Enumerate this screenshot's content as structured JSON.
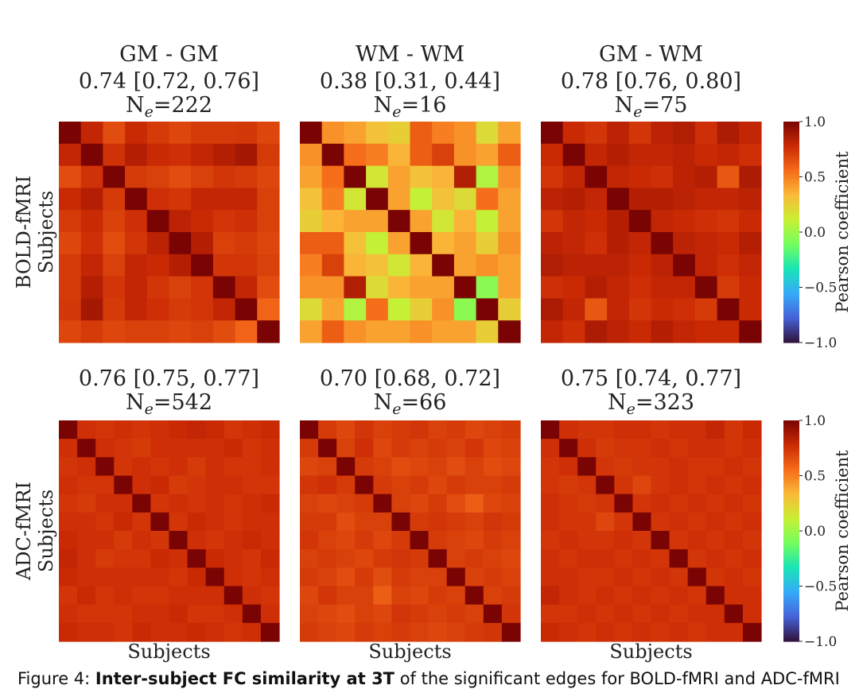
{
  "chart_data": [
    {
      "type": "heatmap",
      "row": "BOLD-fMRI",
      "title_lines": [
        "GM - GM",
        "0.74 [0.72, 0.76]",
        "N_e=222"
      ],
      "ylabel": "BOLD-fMRI\nSubjects",
      "xlabel": "",
      "n_subjects": 10,
      "mean_offdiag": 0.74,
      "matrix": [
        [
          1.0,
          0.8,
          0.66,
          0.78,
          0.72,
          0.68,
          0.72,
          0.72,
          0.73,
          0.68
        ],
        [
          0.8,
          1.0,
          0.75,
          0.84,
          0.78,
          0.76,
          0.8,
          0.84,
          0.88,
          0.72
        ],
        [
          0.66,
          0.75,
          1.0,
          0.72,
          0.7,
          0.66,
          0.7,
          0.74,
          0.72,
          0.68
        ],
        [
          0.78,
          0.84,
          0.72,
          1.0,
          0.76,
          0.74,
          0.8,
          0.8,
          0.8,
          0.7
        ],
        [
          0.72,
          0.78,
          0.7,
          0.76,
          1.0,
          0.82,
          0.78,
          0.74,
          0.76,
          0.7
        ],
        [
          0.68,
          0.76,
          0.66,
          0.74,
          0.82,
          1.0,
          0.84,
          0.7,
          0.72,
          0.68
        ],
        [
          0.72,
          0.8,
          0.7,
          0.8,
          0.78,
          0.84,
          1.0,
          0.74,
          0.74,
          0.7
        ],
        [
          0.72,
          0.84,
          0.74,
          0.8,
          0.74,
          0.7,
          0.74,
          1.0,
          0.8,
          0.66
        ],
        [
          0.73,
          0.88,
          0.72,
          0.8,
          0.76,
          0.72,
          0.74,
          0.8,
          1.0,
          0.58
        ],
        [
          0.68,
          0.72,
          0.68,
          0.7,
          0.7,
          0.68,
          0.7,
          0.66,
          0.58,
          1.0
        ]
      ]
    },
    {
      "type": "heatmap",
      "row": "BOLD-fMRI",
      "title_lines": [
        "WM - WM",
        "0.38 [0.31, 0.44]",
        "N_e=16"
      ],
      "ylabel": "",
      "xlabel": "",
      "n_subjects": 10,
      "mean_offdiag": 0.38,
      "matrix": [
        [
          1.0,
          0.45,
          0.4,
          0.3,
          0.25,
          0.6,
          0.5,
          0.45,
          0.2,
          0.4
        ],
        [
          0.45,
          1.0,
          0.55,
          0.5,
          0.35,
          0.6,
          0.7,
          0.45,
          0.4,
          0.6
        ],
        [
          0.4,
          0.55,
          1.0,
          0.15,
          0.4,
          0.3,
          0.35,
          0.85,
          0.05,
          0.45
        ],
        [
          0.3,
          0.5,
          0.15,
          1.0,
          0.4,
          0.1,
          0.3,
          0.2,
          0.55,
          0.4
        ],
        [
          0.25,
          0.35,
          0.4,
          0.4,
          1.0,
          0.4,
          0.15,
          0.35,
          0.1,
          0.4
        ],
        [
          0.6,
          0.6,
          0.3,
          0.1,
          0.4,
          1.0,
          0.35,
          0.4,
          0.25,
          0.45
        ],
        [
          0.5,
          0.7,
          0.35,
          0.3,
          0.15,
          0.35,
          1.0,
          0.4,
          0.45,
          0.4
        ],
        [
          0.45,
          0.45,
          0.85,
          0.2,
          0.35,
          0.4,
          0.4,
          1.0,
          -0.05,
          0.4
        ],
        [
          0.2,
          0.4,
          0.05,
          0.55,
          0.1,
          0.25,
          0.45,
          -0.05,
          1.0,
          0.25
        ],
        [
          0.4,
          0.6,
          0.45,
          0.4,
          0.4,
          0.45,
          0.4,
          0.4,
          0.25,
          1.0
        ]
      ]
    },
    {
      "type": "heatmap",
      "row": "BOLD-fMRI",
      "title_lines": [
        "GM - WM",
        "0.78 [0.76, 0.80]",
        "N_e=75"
      ],
      "ylabel": "",
      "xlabel": "",
      "n_subjects": 10,
      "mean_offdiag": 0.78,
      "matrix": [
        [
          1.0,
          0.78,
          0.74,
          0.82,
          0.74,
          0.82,
          0.85,
          0.76,
          0.86,
          0.8
        ],
        [
          0.78,
          1.0,
          0.8,
          0.84,
          0.8,
          0.8,
          0.82,
          0.78,
          0.8,
          0.76
        ],
        [
          0.74,
          0.8,
          1.0,
          0.8,
          0.78,
          0.76,
          0.82,
          0.84,
          0.62,
          0.86
        ],
        [
          0.82,
          0.84,
          0.8,
          1.0,
          0.84,
          0.84,
          0.82,
          0.8,
          0.8,
          0.82
        ],
        [
          0.74,
          0.8,
          0.78,
          0.84,
          1.0,
          0.8,
          0.78,
          0.76,
          0.74,
          0.78
        ],
        [
          0.82,
          0.8,
          0.76,
          0.84,
          0.8,
          1.0,
          0.82,
          0.8,
          0.78,
          0.84
        ],
        [
          0.85,
          0.82,
          0.82,
          0.82,
          0.78,
          0.82,
          1.0,
          0.8,
          0.76,
          0.8
        ],
        [
          0.76,
          0.78,
          0.84,
          0.8,
          0.76,
          0.8,
          0.8,
          1.0,
          0.72,
          0.78
        ],
        [
          0.86,
          0.8,
          0.62,
          0.8,
          0.74,
          0.78,
          0.76,
          0.72,
          1.0,
          0.78
        ],
        [
          0.8,
          0.76,
          0.86,
          0.82,
          0.78,
          0.84,
          0.8,
          0.78,
          0.78,
          1.0
        ]
      ]
    },
    {
      "type": "heatmap",
      "row": "ADC-fMRI",
      "title_lines": [
        "0.76 [0.75, 0.77]",
        "N_e=542"
      ],
      "ylabel": "ADC-fMRI\nSubjects",
      "xlabel": "Subjects",
      "n_subjects": 12,
      "mean_offdiag": 0.76,
      "matrix": [
        [
          1.0,
          0.76,
          0.74,
          0.76,
          0.74,
          0.76,
          0.78,
          0.8,
          0.78,
          0.74,
          0.76,
          0.78
        ],
        [
          0.76,
          1.0,
          0.76,
          0.74,
          0.72,
          0.76,
          0.76,
          0.76,
          0.76,
          0.78,
          0.74,
          0.76
        ],
        [
          0.74,
          0.76,
          1.0,
          0.74,
          0.76,
          0.74,
          0.76,
          0.72,
          0.76,
          0.74,
          0.74,
          0.76
        ],
        [
          0.76,
          0.74,
          0.74,
          1.0,
          0.76,
          0.78,
          0.72,
          0.74,
          0.76,
          0.76,
          0.74,
          0.74
        ],
        [
          0.74,
          0.72,
          0.76,
          0.76,
          1.0,
          0.74,
          0.76,
          0.74,
          0.76,
          0.74,
          0.76,
          0.78
        ],
        [
          0.76,
          0.76,
          0.74,
          0.78,
          0.74,
          1.0,
          0.74,
          0.78,
          0.76,
          0.74,
          0.76,
          0.76
        ],
        [
          0.78,
          0.76,
          0.76,
          0.72,
          0.76,
          0.74,
          1.0,
          0.76,
          0.74,
          0.76,
          0.78,
          0.76
        ],
        [
          0.8,
          0.76,
          0.72,
          0.74,
          0.74,
          0.78,
          0.76,
          1.0,
          0.78,
          0.76,
          0.74,
          0.78
        ],
        [
          0.78,
          0.76,
          0.76,
          0.76,
          0.76,
          0.76,
          0.74,
          0.78,
          1.0,
          0.76,
          0.74,
          0.76
        ],
        [
          0.74,
          0.78,
          0.74,
          0.76,
          0.74,
          0.74,
          0.76,
          0.76,
          0.76,
          1.0,
          0.76,
          0.74
        ],
        [
          0.76,
          0.74,
          0.74,
          0.74,
          0.76,
          0.76,
          0.78,
          0.74,
          0.74,
          0.76,
          1.0,
          0.76
        ],
        [
          0.78,
          0.76,
          0.76,
          0.74,
          0.78,
          0.76,
          0.76,
          0.78,
          0.76,
          0.74,
          0.76,
          1.0
        ]
      ]
    },
    {
      "type": "heatmap",
      "row": "ADC-fMRI",
      "title_lines": [
        "0.70 [0.68, 0.72]",
        "N_e=66"
      ],
      "ylabel": "",
      "xlabel": "Subjects",
      "n_subjects": 12,
      "mean_offdiag": 0.7,
      "matrix": [
        [
          1.0,
          0.72,
          0.68,
          0.74,
          0.7,
          0.72,
          0.74,
          0.7,
          0.72,
          0.68,
          0.7,
          0.72
        ],
        [
          0.72,
          1.0,
          0.7,
          0.76,
          0.68,
          0.72,
          0.7,
          0.72,
          0.7,
          0.74,
          0.68,
          0.7
        ],
        [
          0.68,
          0.7,
          1.0,
          0.72,
          0.7,
          0.66,
          0.68,
          0.7,
          0.66,
          0.7,
          0.66,
          0.68
        ],
        [
          0.74,
          0.76,
          0.72,
          1.0,
          0.72,
          0.7,
          0.72,
          0.68,
          0.72,
          0.7,
          0.7,
          0.72
        ],
        [
          0.7,
          0.68,
          0.7,
          0.72,
          1.0,
          0.7,
          0.68,
          0.72,
          0.66,
          0.6,
          0.68,
          0.7
        ],
        [
          0.72,
          0.72,
          0.66,
          0.7,
          0.7,
          1.0,
          0.72,
          0.74,
          0.72,
          0.7,
          0.74,
          0.72
        ],
        [
          0.74,
          0.7,
          0.68,
          0.72,
          0.68,
          0.72,
          1.0,
          0.72,
          0.7,
          0.68,
          0.72,
          0.7
        ],
        [
          0.7,
          0.72,
          0.7,
          0.68,
          0.72,
          0.74,
          0.72,
          1.0,
          0.7,
          0.72,
          0.7,
          0.68
        ],
        [
          0.72,
          0.7,
          0.66,
          0.72,
          0.66,
          0.72,
          0.7,
          0.7,
          1.0,
          0.7,
          0.72,
          0.7
        ],
        [
          0.68,
          0.74,
          0.7,
          0.7,
          0.6,
          0.7,
          0.68,
          0.72,
          0.7,
          1.0,
          0.7,
          0.72
        ],
        [
          0.7,
          0.68,
          0.66,
          0.7,
          0.68,
          0.74,
          0.72,
          0.7,
          0.72,
          0.7,
          1.0,
          0.74
        ],
        [
          0.72,
          0.7,
          0.68,
          0.72,
          0.7,
          0.72,
          0.7,
          0.68,
          0.7,
          0.72,
          0.74,
          1.0
        ]
      ]
    },
    {
      "type": "heatmap",
      "row": "ADC-fMRI",
      "title_lines": [
        "0.75 [0.74, 0.77]",
        "N_e=323"
      ],
      "ylabel": "",
      "xlabel": "Subjects",
      "n_subjects": 12,
      "mean_offdiag": 0.75,
      "matrix": [
        [
          1.0,
          0.76,
          0.74,
          0.74,
          0.76,
          0.76,
          0.74,
          0.76,
          0.76,
          0.8,
          0.74,
          0.78
        ],
        [
          0.76,
          1.0,
          0.76,
          0.72,
          0.74,
          0.74,
          0.76,
          0.74,
          0.76,
          0.76,
          0.74,
          0.76
        ],
        [
          0.74,
          0.76,
          1.0,
          0.74,
          0.72,
          0.74,
          0.74,
          0.76,
          0.74,
          0.74,
          0.76,
          0.74
        ],
        [
          0.74,
          0.72,
          0.74,
          1.0,
          0.74,
          0.68,
          0.74,
          0.76,
          0.74,
          0.76,
          0.74,
          0.76
        ],
        [
          0.76,
          0.74,
          0.72,
          0.74,
          1.0,
          0.74,
          0.76,
          0.74,
          0.76,
          0.74,
          0.76,
          0.74
        ],
        [
          0.76,
          0.74,
          0.74,
          0.68,
          0.74,
          1.0,
          0.74,
          0.76,
          0.74,
          0.76,
          0.74,
          0.76
        ],
        [
          0.74,
          0.76,
          0.74,
          0.74,
          0.76,
          0.74,
          1.0,
          0.74,
          0.76,
          0.74,
          0.76,
          0.74
        ],
        [
          0.76,
          0.74,
          0.76,
          0.76,
          0.74,
          0.76,
          0.74,
          1.0,
          0.74,
          0.76,
          0.74,
          0.76
        ],
        [
          0.76,
          0.76,
          0.74,
          0.74,
          0.76,
          0.74,
          0.76,
          0.74,
          1.0,
          0.74,
          0.76,
          0.74
        ],
        [
          0.8,
          0.76,
          0.74,
          0.76,
          0.74,
          0.76,
          0.74,
          0.76,
          0.74,
          1.0,
          0.76,
          0.76
        ],
        [
          0.74,
          0.74,
          0.76,
          0.74,
          0.76,
          0.74,
          0.76,
          0.74,
          0.76,
          0.76,
          1.0,
          0.76
        ],
        [
          0.78,
          0.76,
          0.74,
          0.76,
          0.74,
          0.76,
          0.74,
          0.76,
          0.74,
          0.76,
          0.76,
          1.0
        ]
      ]
    }
  ],
  "colorbar": {
    "label": "Pearson coefficient",
    "vmin": -1.0,
    "vmax": 1.0,
    "ticks": [
      "1.0",
      "0.5",
      "0.0",
      "−0.5",
      "−1.0"
    ],
    "tick_values": [
      1.0,
      0.5,
      0.0,
      -0.5,
      -1.0
    ],
    "colormap": "turbo",
    "colors": [
      "#30123b",
      "#4662d7",
      "#36aaf9",
      "#1ae4b6",
      "#72fe5e",
      "#c8ef34",
      "#faba39",
      "#f66b19",
      "#ca2a04",
      "#7a0403"
    ]
  },
  "caption": {
    "prefix": "Figure 4: ",
    "bold": "Inter-subject FC similarity at 3T",
    "rest": " of the significant edges for BOLD-fMRI and ADC-fMRI"
  }
}
